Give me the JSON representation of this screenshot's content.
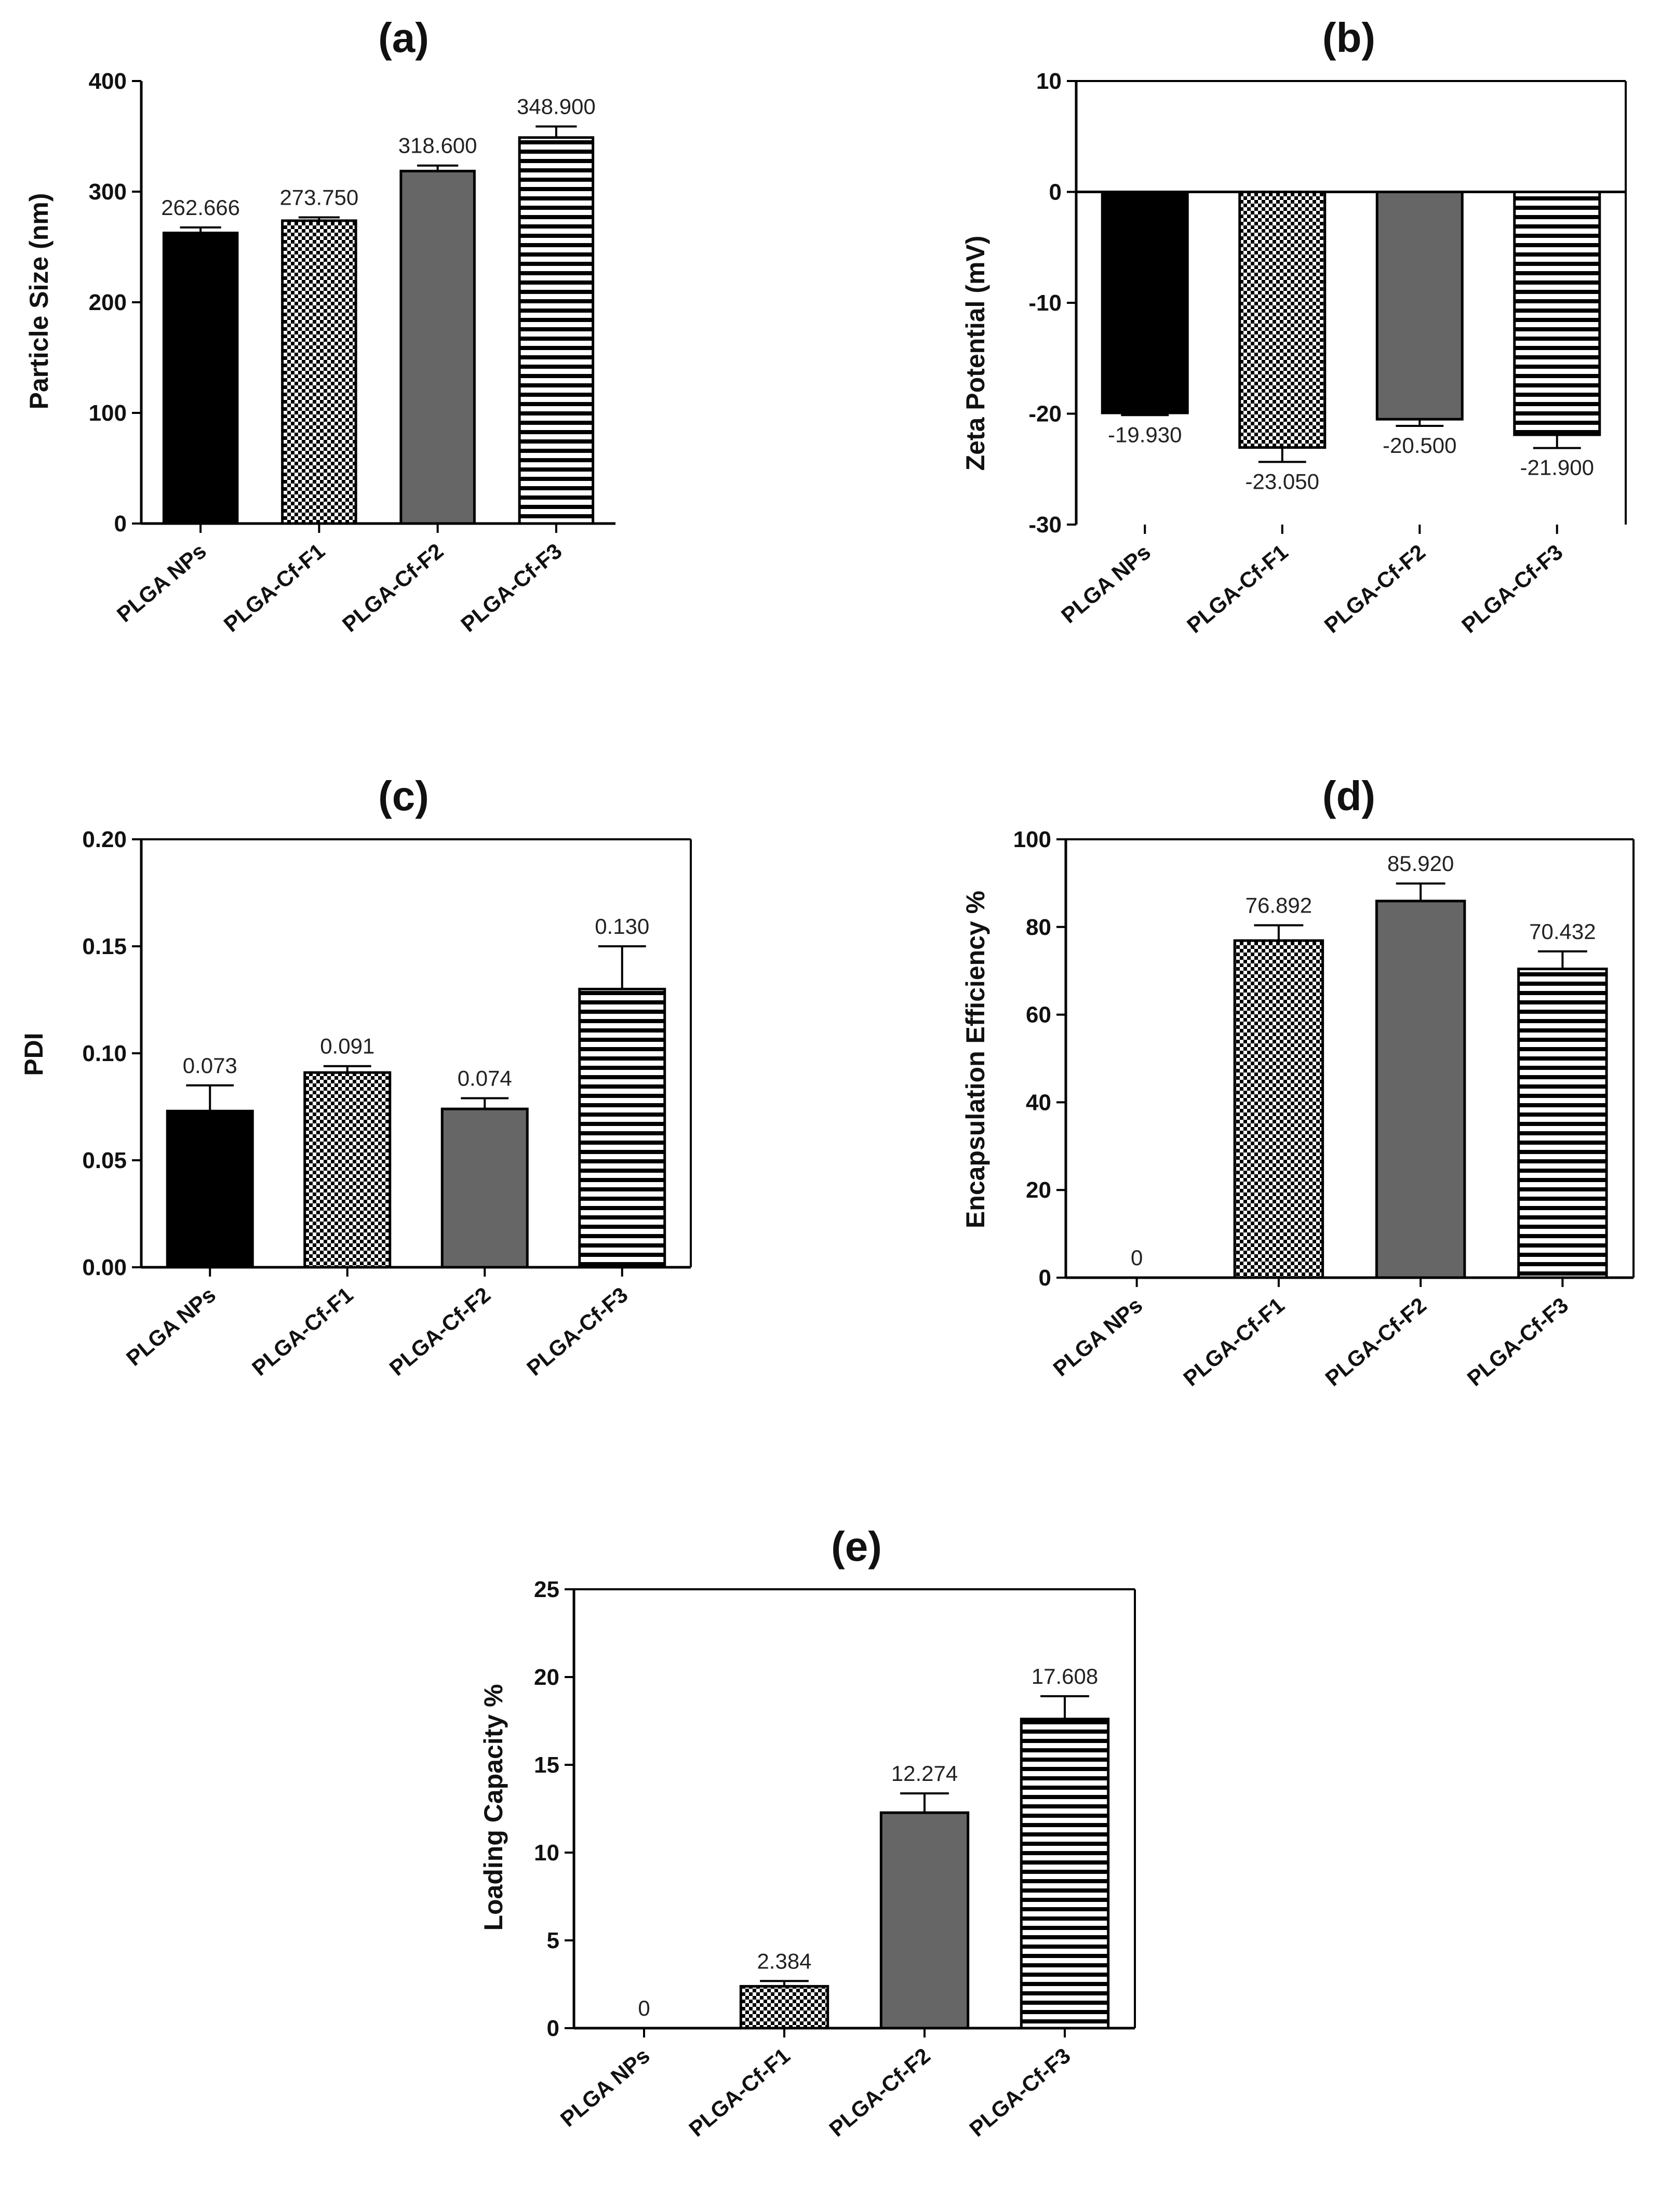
{
  "figure": {
    "colors": {
      "black_bar": "#000000",
      "gray_bar": "#666666",
      "axis": "#000000",
      "pattern_ink": "#000000",
      "pattern_paper": "#ffffff"
    },
    "bar_styles": [
      "solid-black",
      "checker",
      "solid-gray",
      "horizontal-stripes"
    ]
  },
  "chart_data": [
    {
      "id": "a",
      "title": "(a)",
      "type": "bar",
      "ylabel": "Particle Size (nm)",
      "xlabel": "",
      "categories": [
        "PLGA NPs",
        "PLGA-Cf-F1",
        "PLGA-Cf-F2",
        "PLGA-Cf-F3"
      ],
      "values": [
        262.666,
        273.75,
        318.6,
        348.9
      ],
      "errors": [
        5,
        3,
        5,
        10
      ],
      "data_labels": [
        "262.666",
        "273.750",
        "318.600",
        "348.900"
      ],
      "ylim": [
        0,
        400
      ],
      "yticks": [
        0,
        100,
        200,
        300,
        400
      ],
      "ytick_labels": [
        "0",
        "100",
        "200",
        "300",
        "400"
      ],
      "label_position": "above"
    },
    {
      "id": "b",
      "title": "(b)",
      "type": "bar",
      "ylabel": "Zeta Potential (mV)",
      "xlabel": "",
      "categories": [
        "PLGA NPs",
        "PLGA-Cf-F1",
        "PLGA-Cf-F2",
        "PLGA-Cf-F3"
      ],
      "values": [
        -19.93,
        -23.05,
        -20.5,
        -21.9
      ],
      "errors": [
        0.2,
        1.3,
        0.6,
        1.2
      ],
      "data_labels": [
        "-19.930",
        "-23.050",
        "-20.500",
        "-21.900"
      ],
      "ylim": [
        -30,
        10
      ],
      "yticks": [
        -30,
        -20,
        -10,
        0,
        10
      ],
      "ytick_labels": [
        "-30",
        "-20",
        "-10",
        "0",
        "10"
      ],
      "label_position": "below"
    },
    {
      "id": "c",
      "title": "(c)",
      "type": "bar",
      "ylabel": "PDI",
      "xlabel": "",
      "categories": [
        "PLGA NPs",
        "PLGA-Cf-F1",
        "PLGA-Cf-F2",
        "PLGA-Cf-F3"
      ],
      "values": [
        0.073,
        0.091,
        0.074,
        0.13
      ],
      "errors": [
        0.012,
        0.003,
        0.005,
        0.02
      ],
      "data_labels": [
        "0.073",
        "0.091",
        "0.074",
        "0.130"
      ],
      "ylim": [
        0,
        0.2
      ],
      "yticks": [
        0,
        0.05,
        0.1,
        0.15,
        0.2
      ],
      "ytick_labels": [
        "0.00",
        "0.05",
        "0.10",
        "0.15",
        "0.20"
      ],
      "label_position": "above"
    },
    {
      "id": "d",
      "title": "(d)",
      "type": "bar",
      "ylabel": "Encapsulation Efficiency %",
      "xlabel": "",
      "categories": [
        "PLGA NPs",
        "PLGA-Cf-F1",
        "PLGA-Cf-F2",
        "PLGA-Cf-F3"
      ],
      "values": [
        0,
        76.892,
        85.92,
        70.432
      ],
      "errors": [
        0,
        3.5,
        4.0,
        4.0
      ],
      "data_labels": [
        "0",
        "76.892",
        "85.920",
        "70.432"
      ],
      "ylim": [
        0,
        100
      ],
      "yticks": [
        0,
        20,
        40,
        60,
        80,
        100
      ],
      "ytick_labels": [
        "0",
        "20",
        "40",
        "60",
        "80",
        "100"
      ],
      "label_position": "above"
    },
    {
      "id": "e",
      "title": "(e)",
      "type": "bar",
      "ylabel": "Loading Capacity %",
      "xlabel": "",
      "categories": [
        "PLGA NPs",
        "PLGA-Cf-F1",
        "PLGA-Cf-F2",
        "PLGA-Cf-F3"
      ],
      "values": [
        0,
        2.384,
        12.274,
        17.608
      ],
      "errors": [
        0,
        0.3,
        1.1,
        1.3
      ],
      "data_labels": [
        "0",
        "2.384",
        "12.274",
        "17.608"
      ],
      "ylim": [
        0,
        25
      ],
      "yticks": [
        0,
        5,
        10,
        15,
        20,
        25
      ],
      "ytick_labels": [
        "0",
        "5",
        "10",
        "15",
        "20",
        "25"
      ],
      "label_position": "above"
    }
  ]
}
